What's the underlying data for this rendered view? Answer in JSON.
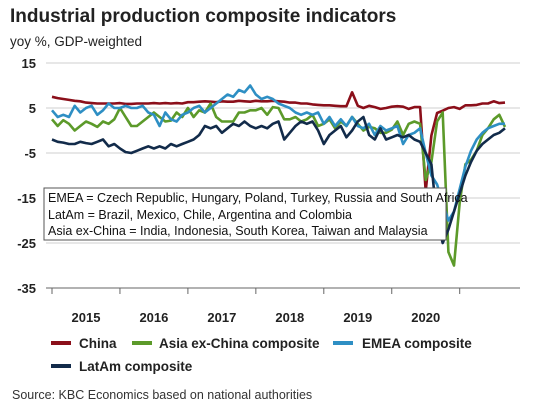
{
  "title": "Industrial production composite indicators",
  "subtitle": "yoy %, GDP-weighted",
  "source": "Source: KBC Economics based on national authorities",
  "note_lines": [
    "EMEA = Czech Republic, Hungary, Poland, Turkey, Russia and South Africa",
    "LatAm = Brazil, Mexico, Chile, Argentina and Colombia",
    "Asia ex-China = India, Indonesia, South Korea, Taiwan and Malaysia"
  ],
  "colors": {
    "China": "#8b0f1a",
    "Asia ex-China composite": "#5c9a2a",
    "EMEA composite": "#2e8fc4",
    "LatAm composite": "#122b4a"
  },
  "chart_data": {
    "type": "line",
    "title": "Industrial production composite indicators",
    "subtitle": "yoy %, GDP-weighted",
    "ylim": [
      -35,
      15
    ],
    "yticks": [
      "15",
      "5",
      "-5",
      "-15",
      "-25",
      "-35"
    ],
    "xticks": [
      "2015",
      "2016",
      "2017",
      "2018",
      "2019",
      "2020"
    ],
    "x_start": "2015-01",
    "x_end": "2020-11",
    "grid": "horizontal",
    "legend_position": "bottom",
    "series": [
      {
        "name": "China",
        "color": "#8b0f1a",
        "values": [
          7.5,
          7.2,
          7.0,
          6.8,
          6.6,
          6.5,
          6.2,
          6.1,
          6.0,
          6.0,
          6.0,
          6.0,
          6.1,
          5.9,
          5.9,
          6.0,
          6.0,
          6.0,
          6.1,
          6.0,
          6.1,
          6.0,
          6.1,
          6.0,
          6.3,
          6.3,
          6.4,
          6.5,
          6.4,
          6.3,
          6.5,
          6.4,
          6.4,
          6.6,
          6.5,
          6.4,
          6.6,
          6.5,
          6.5,
          6.6,
          6.5,
          6.4,
          6.2,
          6.2,
          6.0,
          6.0,
          5.8,
          5.7,
          5.6,
          5.6,
          5.5,
          5.4,
          5.4,
          8.5,
          5.5,
          5.0,
          5.5,
          5.2,
          4.8,
          5.0,
          5.3,
          5.4,
          5.3,
          4.8,
          5.2,
          5.2,
          -13.5,
          -1.1,
          3.9,
          4.4,
          5.0,
          5.2,
          4.8,
          5.6,
          5.6,
          5.7,
          6.0,
          6.0,
          6.5,
          6.1,
          6.2
        ]
      },
      {
        "name": "Asia ex-China composite",
        "color": "#5c9a2a",
        "values": [
          2.5,
          1.0,
          2.3,
          1.5,
          0.0,
          1.0,
          2.0,
          1.5,
          0.8,
          2.0,
          1.5,
          2.5,
          5.0,
          3.0,
          1.0,
          1.0,
          2.0,
          3.0,
          4.0,
          3.0,
          2.0,
          2.2,
          4.0,
          3.0,
          5.0,
          3.0,
          4.5,
          4.0,
          6.0,
          3.0,
          2.0,
          2.0,
          2.0,
          4.0,
          4.0,
          4.5,
          4.5,
          5.0,
          3.5,
          5.2,
          5.0,
          2.5,
          2.5,
          3.0,
          2.0,
          2.5,
          3.5,
          1.0,
          1.5,
          2.5,
          0.5,
          2.0,
          1.0,
          3.0,
          1.5,
          0.0,
          0.8,
          0.5,
          -0.5,
          -0.5,
          0.2,
          2.0,
          -1.0,
          1.5,
          2.0,
          1.5,
          -11.0,
          -7.0,
          2.0,
          4.0,
          -27.0,
          -30.0,
          -16.0,
          -7.5,
          -6.5,
          -4.5,
          -1.0,
          0.5,
          2.5,
          3.5,
          0.8
        ]
      },
      {
        "name": "EMEA composite",
        "color": "#2e8fc4",
        "values": [
          4.5,
          3.0,
          3.5,
          3.0,
          5.5,
          4.0,
          5.0,
          5.5,
          3.5,
          4.5,
          6.0,
          5.0,
          5.0,
          5.5,
          5.0,
          5.0,
          5.5,
          4.0,
          3.5,
          1.0,
          4.0,
          2.5,
          2.0,
          3.5,
          4.0,
          5.0,
          5.5,
          4.0,
          5.0,
          6.0,
          7.0,
          8.0,
          7.5,
          9.0,
          8.5,
          10.0,
          8.0,
          7.0,
          7.5,
          7.0,
          6.0,
          5.5,
          5.0,
          4.0,
          3.5,
          4.0,
          3.5,
          4.0,
          1.5,
          3.0,
          1.0,
          2.5,
          1.0,
          3.0,
          1.0,
          0.5,
          1.5,
          -1.0,
          1.0,
          0.0,
          0.5,
          1.0,
          -3.0,
          -1.0,
          -0.5,
          0.5,
          -5.0,
          -10.0,
          -12.0,
          -16.0,
          -20.0,
          -18.0,
          -13.0,
          -8.0,
          -4.5,
          -2.0,
          -0.5,
          0.5,
          1.0,
          1.5,
          1.5
        ]
      },
      {
        "name": "LatAm composite",
        "color": "#122b4a",
        "values": [
          -2.0,
          -2.5,
          -2.7,
          -3.0,
          -3.0,
          -2.5,
          -2.8,
          -3.0,
          -2.5,
          -2.0,
          -3.5,
          -3.0,
          -4.0,
          -4.8,
          -5.0,
          -4.5,
          -4.0,
          -3.5,
          -4.0,
          -3.5,
          -4.0,
          -3.0,
          -3.5,
          -3.0,
          -2.5,
          -2.0,
          -1.0,
          1.0,
          0.5,
          1.0,
          -0.5,
          0.5,
          1.5,
          1.0,
          2.0,
          1.0,
          0.5,
          1.0,
          0.5,
          1.5,
          2.0,
          -2.0,
          -0.5,
          1.0,
          2.0,
          1.5,
          2.0,
          0.0,
          -3.0,
          -1.0,
          0.0,
          1.0,
          -1.5,
          0.0,
          2.0,
          3.0,
          -1.0,
          -2.0,
          0.5,
          -2.0,
          -1.5,
          -1.0,
          -1.5,
          -1.0,
          -2.0,
          -2.5,
          -5.0,
          -7.5,
          -20.0,
          -25.0,
          -22.0,
          -18.0,
          -14.0,
          -10.0,
          -7.0,
          -4.5,
          -3.0,
          -2.0,
          -1.0,
          -0.5,
          0.5
        ]
      }
    ]
  }
}
